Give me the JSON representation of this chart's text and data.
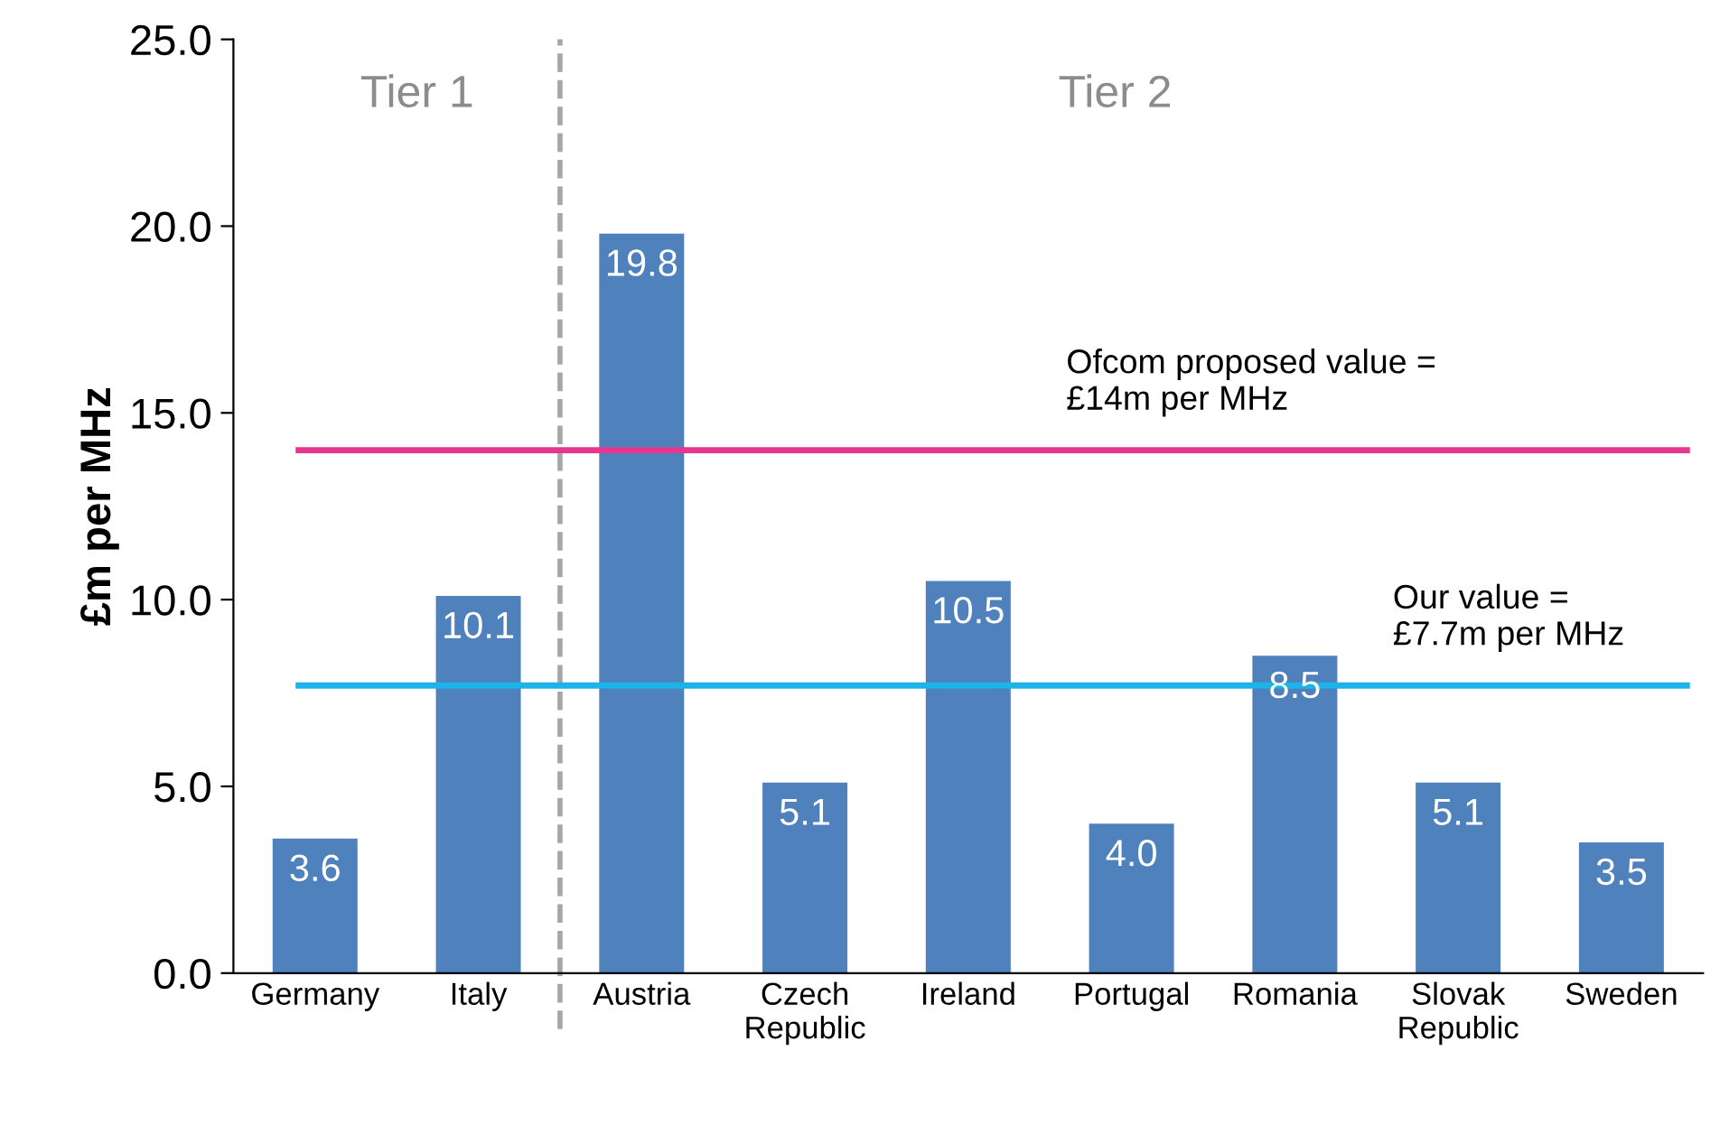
{
  "chart_data": {
    "type": "bar",
    "ylabel": "£m per MHz",
    "categories": [
      "Germany",
      "Italy",
      "Austria",
      "Czech\nRepublic",
      "Ireland",
      "Portugal",
      "Romania",
      "Slovak\nRepublic",
      "Sweden"
    ],
    "values": [
      3.6,
      10.1,
      19.8,
      5.1,
      10.5,
      4.0,
      8.5,
      5.1,
      3.5
    ],
    "color": "#4f81bd",
    "value_labels": [
      "3.6",
      "10.1",
      "19.8",
      "5.1",
      "10.5",
      "4.0",
      "8.5",
      "5.1",
      "3.5"
    ],
    "ylim": [
      0,
      25
    ],
    "yticks": [
      {
        "value": 0,
        "label": "0.0"
      },
      {
        "value": 5,
        "label": "5.0"
      },
      {
        "value": 10,
        "label": "10.0"
      },
      {
        "value": 15,
        "label": "15.0"
      },
      {
        "value": 20,
        "label": "20.0"
      },
      {
        "value": 25,
        "label": "25.0"
      }
    ],
    "grid": false,
    "ref_lines": [
      {
        "axis": "y",
        "value": 14,
        "label": "Ofcom proposed value =\n£14m per MHz",
        "color": "#e8368f"
      },
      {
        "axis": "y",
        "value": 7.7,
        "label": "Our value =\n£7.7m per MHz",
        "color": "#1cb4e8"
      }
    ],
    "annotations": [
      "Tier 1",
      "Tier 2"
    ]
  }
}
